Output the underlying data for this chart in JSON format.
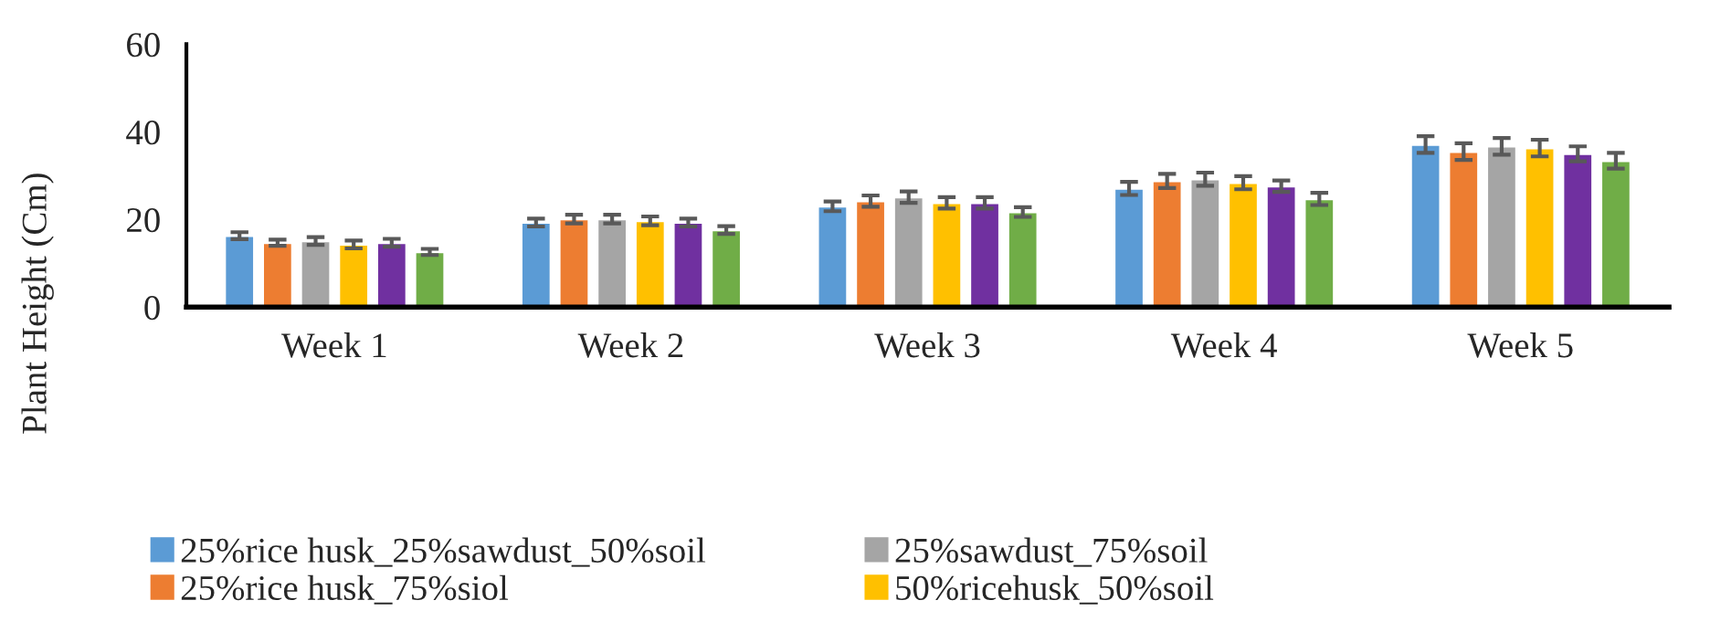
{
  "chart_data": {
    "type": "bar",
    "ylabel": "Plant Height (Cm)",
    "categories": [
      "Week 1",
      "Week 2",
      "Week 3",
      "Week 4",
      "Week 5"
    ],
    "series": [
      {
        "name": "25%rice husk_25%sawdust_50%soil",
        "color": "#5b9bd5",
        "values": [
          16.3,
          19.3,
          23.0,
          27.1,
          37.1
        ],
        "errors": [
          0.8,
          0.9,
          1.1,
          1.5,
          1.9
        ]
      },
      {
        "name": "25%rice husk_75%siol",
        "color": "#ed7d31",
        "values": [
          14.7,
          20.1,
          24.2,
          28.8,
          35.5
        ],
        "errors": [
          0.7,
          1.0,
          1.3,
          1.6,
          1.9
        ]
      },
      {
        "name": "25%sawdust_75%soil",
        "color": "#a5a5a5",
        "values": [
          15.1,
          20.1,
          25.1,
          29.2,
          36.7
        ],
        "errors": [
          0.9,
          1.0,
          1.3,
          1.5,
          1.9
        ]
      },
      {
        "name": "50%ricehusk_50%soil",
        "color": "#ffc000",
        "values": [
          14.3,
          19.7,
          23.8,
          28.4,
          36.3
        ],
        "errors": [
          0.9,
          1.0,
          1.3,
          1.5,
          1.9
        ]
      },
      {
        "color": "#7030a0",
        "values": [
          14.7,
          19.3,
          23.8,
          27.6,
          35.0
        ],
        "errors": [
          0.9,
          0.9,
          1.3,
          1.3,
          1.7
        ]
      },
      {
        "color": "#70ad47",
        "values": [
          12.6,
          17.6,
          21.7,
          24.7,
          33.4
        ],
        "errors": [
          0.7,
          0.9,
          1.1,
          1.4,
          1.8
        ]
      }
    ],
    "ylim": [
      0,
      60
    ],
    "yticks": [
      0,
      20,
      40,
      60
    ],
    "grid": false,
    "legend": "bottom"
  }
}
